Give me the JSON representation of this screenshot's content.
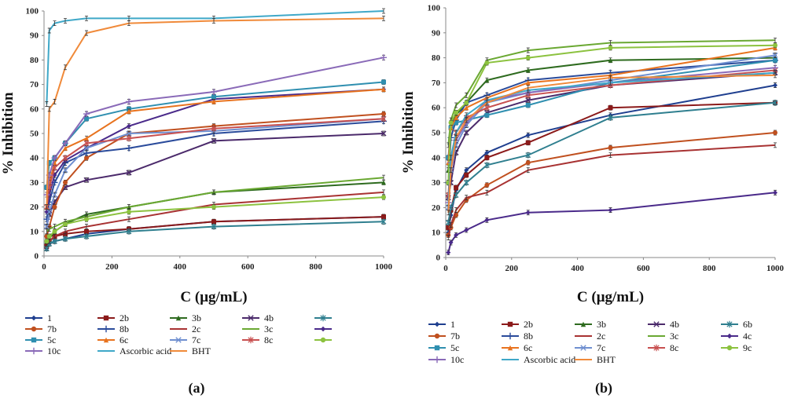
{
  "figure": {
    "panels": [
      "(a)",
      "(b)"
    ]
  },
  "legend_order": [
    "1",
    "2b",
    "3b",
    "4b",
    "6b",
    "7b",
    "8b",
    "2c",
    "3c",
    "4c",
    "5c",
    "6c",
    "7c",
    "8c",
    "9c",
    "10c",
    "Ascorbic acid",
    "BHT"
  ],
  "series_styles": {
    "1": {
      "color": "#1f3f8f",
      "marker": "diamond"
    },
    "2b": {
      "color": "#8b1a1a",
      "marker": "square"
    },
    "3b": {
      "color": "#2e6b1f",
      "marker": "triangle"
    },
    "4b": {
      "color": "#4b2a6b",
      "marker": "x"
    },
    "6b": {
      "color": "#2f7f8f",
      "marker": "asterisk"
    },
    "7b": {
      "color": "#c0501f",
      "marker": "circle"
    },
    "8b": {
      "color": "#2a4b9b",
      "marker": "plus"
    },
    "2c": {
      "color": "#a83232",
      "marker": "none"
    },
    "3c": {
      "color": "#6aa832",
      "marker": "none"
    },
    "4c": {
      "color": "#4a2a8a",
      "marker": "diamond"
    },
    "5c": {
      "color": "#2f8fb0",
      "marker": "square"
    },
    "6c": {
      "color": "#e8731f",
      "marker": "triangle"
    },
    "7c": {
      "color": "#6f8fd0",
      "marker": "x"
    },
    "8c": {
      "color": "#c85050",
      "marker": "asterisk"
    },
    "9c": {
      "color": "#8cc23f",
      "marker": "circle"
    },
    "10c": {
      "color": "#8a6ab8",
      "marker": "plus"
    },
    "Ascorbic acid": {
      "color": "#3fa8c8",
      "marker": "none"
    },
    "BHT": {
      "color": "#f08a3a",
      "marker": "none"
    }
  },
  "chart_data": [
    {
      "type": "line",
      "panel": "(a)",
      "title": "",
      "xlabel": "C (μg/mL)",
      "ylabel": "% Inhibition",
      "xlim": [
        0,
        1000
      ],
      "ylim": [
        0,
        100
      ],
      "xticks": [
        0,
        200,
        400,
        600,
        800,
        1000
      ],
      "yticks": [
        0,
        10,
        20,
        30,
        40,
        50,
        60,
        70,
        80,
        90,
        100
      ],
      "grid": false,
      "legend_position": "bottom",
      "legend_labels": [
        "1",
        "2b",
        "3b",
        "4b",
        "",
        "7b",
        "8b",
        "2c",
        "3c",
        "",
        "5c",
        "6c",
        "7c",
        "8c",
        "",
        "10c",
        "Ascorbic acid",
        "BHT"
      ],
      "x": [
        7.8,
        15.6,
        31.25,
        62.5,
        125,
        250,
        500,
        1000
      ],
      "series": [
        {
          "name": "1",
          "values": [
            3,
            5,
            6,
            7,
            9,
            11,
            14,
            16
          ]
        },
        {
          "name": "2b",
          "values": [
            4,
            6,
            8,
            9,
            10,
            11,
            14,
            16
          ]
        },
        {
          "name": "3b",
          "values": [
            6,
            7,
            10,
            13,
            17,
            20,
            26,
            30
          ]
        },
        {
          "name": "4b",
          "values": [
            12,
            17,
            22,
            28,
            31,
            34,
            47,
            50
          ]
        },
        {
          "name": "6b",
          "values": [
            3,
            5,
            6,
            7,
            8,
            10,
            12,
            14
          ]
        },
        {
          "name": "7b",
          "values": [
            8,
            12,
            20,
            30,
            40,
            50,
            53,
            58
          ]
        },
        {
          "name": "8b",
          "values": [
            15,
            22,
            30,
            38,
            42,
            44,
            50,
            55
          ]
        },
        {
          "name": "2c",
          "values": [
            5,
            6,
            8,
            10,
            12,
            15,
            21,
            26
          ]
        },
        {
          "name": "3c",
          "values": [
            10,
            11,
            12,
            14,
            16,
            20,
            26,
            32
          ]
        },
        {
          "name": "4c",
          "values": [
            18,
            25,
            33,
            39,
            44,
            53,
            64,
            68
          ]
        },
        {
          "name": "5c",
          "values": [
            28,
            38,
            40,
            46,
            56,
            60,
            65,
            71
          ]
        },
        {
          "name": "6c",
          "values": [
            20,
            30,
            38,
            44,
            48,
            59,
            63,
            68
          ]
        },
        {
          "name": "7c",
          "values": [
            12,
            18,
            25,
            35,
            44,
            50,
            51,
            56
          ]
        },
        {
          "name": "8c",
          "values": [
            20,
            28,
            36,
            40,
            46,
            48,
            52,
            56
          ]
        },
        {
          "name": "9c",
          "values": [
            6,
            8,
            10,
            13,
            15,
            18,
            20,
            24
          ]
        },
        {
          "name": "10c",
          "values": [
            25,
            33,
            40,
            46,
            58,
            63,
            67,
            81
          ]
        },
        {
          "name": "Ascorbic acid",
          "values": [
            62,
            92,
            95,
            96,
            97,
            97,
            97,
            100
          ]
        },
        {
          "name": "BHT",
          "values": [
            20,
            60,
            63,
            77,
            91,
            95,
            96,
            97
          ]
        }
      ]
    },
    {
      "type": "line",
      "panel": "(b)",
      "title": "",
      "xlabel": "C (μg/mL)",
      "ylabel": "% Inhibition",
      "xlim": [
        0,
        1000
      ],
      "ylim": [
        0,
        100
      ],
      "xticks": [
        0,
        200,
        400,
        600,
        800,
        1000
      ],
      "yticks": [
        0,
        10,
        20,
        30,
        40,
        50,
        60,
        70,
        80,
        90,
        100
      ],
      "grid": false,
      "legend_position": "bottom",
      "legend_labels": [
        "1",
        "2b",
        "3b",
        "4b",
        "6b",
        "7b",
        "8b",
        "2c",
        "3c",
        "4c",
        "5c",
        "6c",
        "7c",
        "8c",
        "9c",
        "10c",
        "Ascorbic acid",
        "BHT"
      ],
      "x": [
        7.8,
        15.6,
        31.25,
        62.5,
        125,
        250,
        500,
        1000
      ],
      "series": [
        {
          "name": "1",
          "values": [
            10,
            17,
            27,
            35,
            42,
            49,
            57,
            69
          ]
        },
        {
          "name": "2b",
          "values": [
            12,
            19,
            28,
            33,
            40,
            46,
            60,
            62
          ]
        },
        {
          "name": "3b",
          "values": [
            35,
            53,
            57,
            62,
            71,
            75,
            79,
            80
          ]
        },
        {
          "name": "4b",
          "values": [
            24,
            30,
            42,
            50,
            58,
            63,
            69,
            74
          ]
        },
        {
          "name": "6b",
          "values": [
            14,
            20,
            25,
            30,
            37,
            41,
            56,
            62
          ]
        },
        {
          "name": "7b",
          "values": [
            9,
            12,
            17,
            23,
            29,
            38,
            44,
            50
          ]
        },
        {
          "name": "8b",
          "values": [
            30,
            48,
            55,
            62,
            65,
            71,
            74,
            79
          ]
        },
        {
          "name": "2c",
          "values": [
            8,
            13,
            19,
            24,
            26,
            35,
            41,
            45
          ]
        },
        {
          "name": "3c",
          "values": [
            45,
            55,
            61,
            65,
            79,
            83,
            86,
            87
          ]
        },
        {
          "name": "4c",
          "values": [
            2,
            6,
            9,
            11,
            15,
            18,
            19,
            26
          ]
        },
        {
          "name": "5c",
          "values": [
            40,
            52,
            54,
            55,
            57,
            61,
            70,
            79
          ]
        },
        {
          "name": "6c",
          "values": [
            38,
            52,
            56,
            60,
            64,
            70,
            73,
            84
          ]
        },
        {
          "name": "7c",
          "values": [
            20,
            35,
            45,
            53,
            62,
            66,
            71,
            81
          ]
        },
        {
          "name": "8c",
          "values": [
            25,
            40,
            50,
            56,
            60,
            65,
            69,
            75
          ]
        },
        {
          "name": "9c",
          "values": [
            30,
            54,
            58,
            62,
            78,
            80,
            84,
            85
          ]
        },
        {
          "name": "10c",
          "values": [
            22,
            38,
            47,
            54,
            63,
            66,
            70,
            76
          ]
        },
        {
          "name": "Ascorbic acid",
          "values": [
            20,
            40,
            50,
            57,
            63,
            67,
            70,
            74
          ]
        },
        {
          "name": "BHT",
          "values": [
            18,
            35,
            48,
            55,
            62,
            68,
            72,
            73
          ]
        }
      ]
    }
  ]
}
